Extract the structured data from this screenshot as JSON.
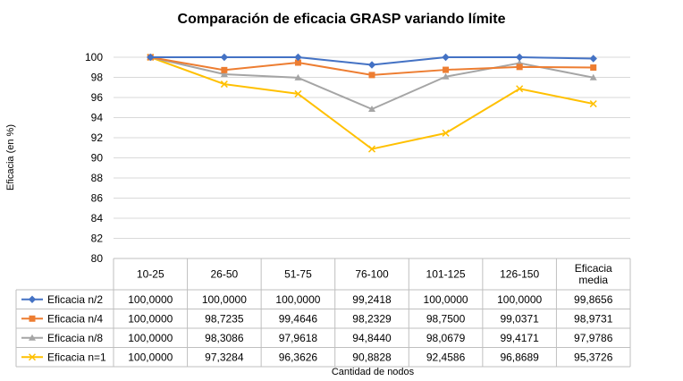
{
  "chart_data": {
    "type": "line",
    "title": "Comparación de eficacia GRASP variando límite",
    "ylabel": "Eficacia (en %)",
    "xlabel": "Cantidad de nodos",
    "categories": [
      "10-25",
      "26-50",
      "51-75",
      "76-100",
      "101-125",
      "126-150",
      "Eficacia media"
    ],
    "ylim": [
      80,
      100
    ],
    "yticks": [
      80,
      82,
      84,
      86,
      88,
      90,
      92,
      94,
      96,
      98,
      100
    ],
    "grid": true,
    "legend": "data-table",
    "series": [
      {
        "name": "Eficacia n/2",
        "color": "#4472C4",
        "marker": "diamond",
        "values": [
          100.0,
          100.0,
          100.0,
          99.2418,
          100.0,
          100.0,
          99.8656
        ],
        "labels": [
          "100,0000",
          "100,0000",
          "100,0000",
          "99,2418",
          "100,0000",
          "100,0000",
          "99,8656"
        ]
      },
      {
        "name": "Eficacia n/4",
        "color": "#ED7D31",
        "marker": "square",
        "values": [
          100.0,
          98.7235,
          99.4646,
          98.2329,
          98.75,
          99.0371,
          98.9731
        ],
        "labels": [
          "100,0000",
          "98,7235",
          "99,4646",
          "98,2329",
          "98,7500",
          "99,0371",
          "98,9731"
        ]
      },
      {
        "name": "Eficacia n/8",
        "color": "#A5A5A5",
        "marker": "triangle",
        "values": [
          100.0,
          98.3086,
          97.9618,
          94.844,
          98.0679,
          99.4171,
          97.9786
        ],
        "labels": [
          "100,0000",
          "98,3086",
          "97,9618",
          "94,8440",
          "98,0679",
          "99,4171",
          "97,9786"
        ]
      },
      {
        "name": "Eficacia n=1",
        "color": "#FFC000",
        "marker": "x",
        "values": [
          100.0,
          97.3284,
          96.3626,
          90.8828,
          92.4586,
          96.8689,
          95.3726
        ],
        "labels": [
          "100,0000",
          "97,3284",
          "96,3626",
          "90,8828",
          "92,4586",
          "96,8689",
          "95,3726"
        ]
      }
    ]
  }
}
